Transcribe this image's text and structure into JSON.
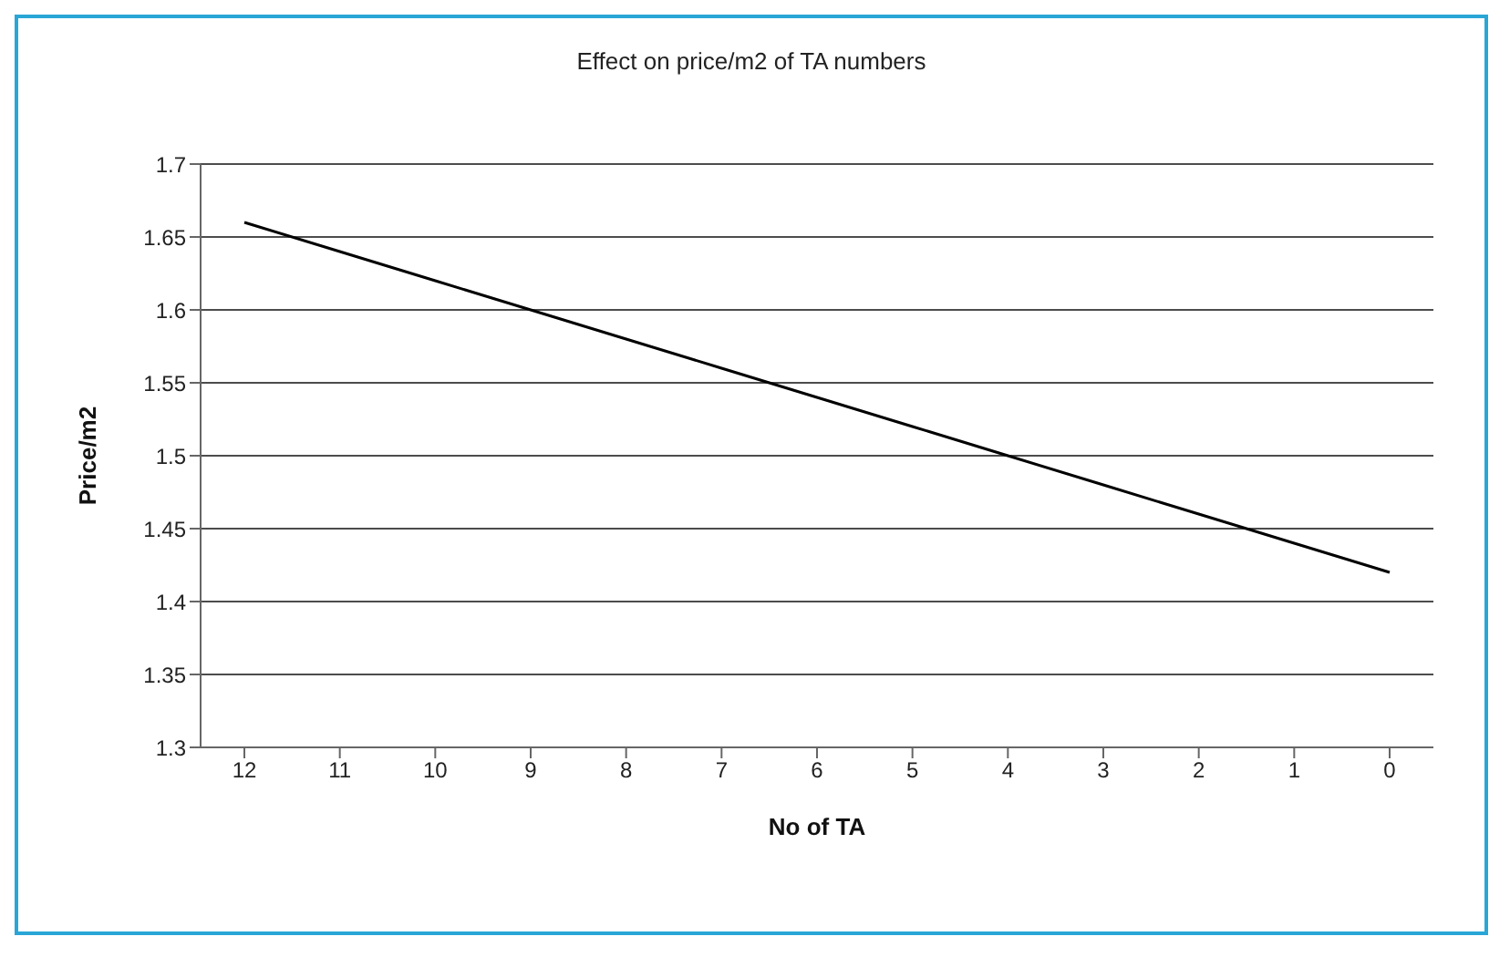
{
  "chart_data": {
    "type": "line",
    "title": "Effect on price/m2 of TA numbers",
    "xlabel": "No of TA",
    "ylabel": "Price/m2",
    "categories": [
      "12",
      "11",
      "10",
      "9",
      "8",
      "7",
      "6",
      "5",
      "4",
      "3",
      "2",
      "1",
      "0"
    ],
    "series": [
      {
        "color": "#000000",
        "values": [
          1.66,
          1.64,
          1.62,
          1.6,
          1.58,
          1.56,
          1.54,
          1.52,
          1.5,
          1.48,
          1.46,
          1.44,
          1.42
        ]
      }
    ],
    "ylim": [
      1.3,
      1.7
    ],
    "yticks": [
      1.3,
      1.35,
      1.4,
      1.45,
      1.5,
      1.55,
      1.6,
      1.65,
      1.7
    ],
    "grid": "y",
    "marker": "none",
    "line_style": "solid"
  }
}
